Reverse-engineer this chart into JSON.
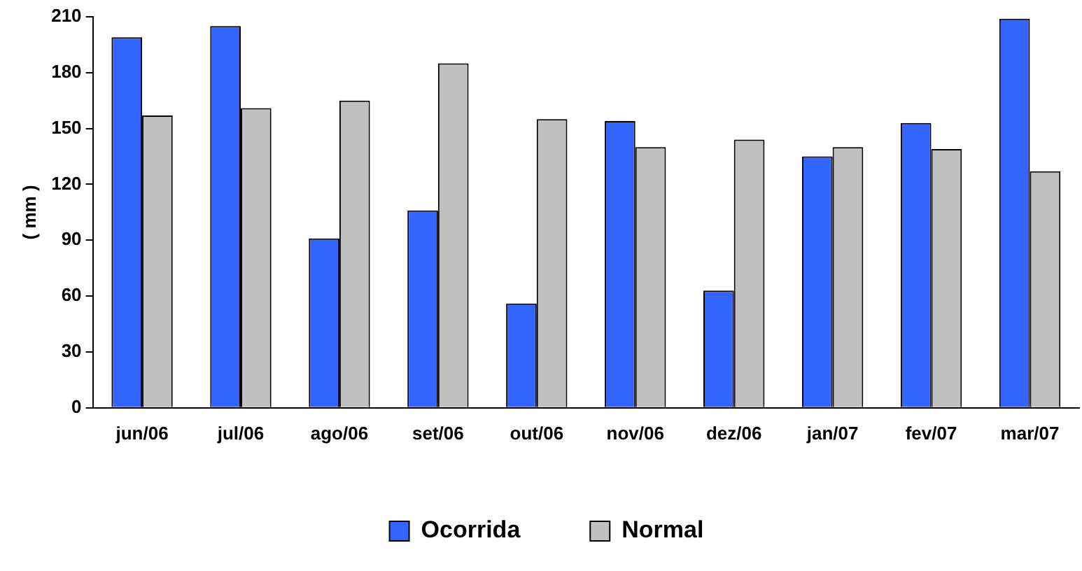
{
  "chart_data": {
    "type": "bar",
    "ylabel": "( mm )",
    "categories": [
      "jun/06",
      "jul/06",
      "ago/06",
      "set/06",
      "out/06",
      "nov/06",
      "dez/06",
      "jan/07",
      "fev/07",
      "mar/07"
    ],
    "series": [
      {
        "name": "Ocorrida",
        "color": "#3366ff",
        "values": [
          199,
          205,
          91,
          106,
          56,
          154,
          63,
          135,
          153,
          209
        ]
      },
      {
        "name": "Normal",
        "color": "#c0c0c0",
        "values": [
          157,
          161,
          165,
          185,
          155,
          140,
          144,
          140,
          139,
          127
        ]
      }
    ],
    "ylim": [
      0,
      210
    ],
    "yticks": [
      0,
      30,
      60,
      90,
      120,
      150,
      180,
      210
    ],
    "grid": false,
    "legend": "bottom"
  }
}
